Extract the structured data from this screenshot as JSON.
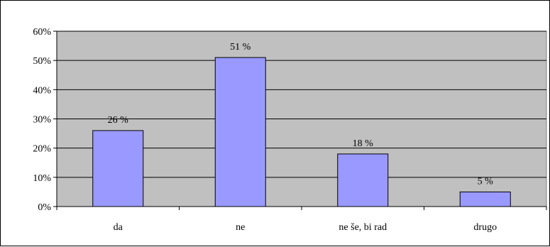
{
  "chart_data": {
    "type": "bar",
    "categories": [
      "da",
      "ne",
      "ne še, bi rad",
      "drugo"
    ],
    "values": [
      26,
      51,
      18,
      5
    ],
    "data_labels": [
      "26 %",
      "51 %",
      "18 %",
      "5 %"
    ],
    "ylim": [
      0,
      60
    ],
    "yticks": [
      0,
      10,
      20,
      30,
      40,
      50,
      60
    ],
    "ytick_labels": [
      "0%",
      "10%",
      "20%",
      "30%",
      "40%",
      "50%",
      "60%"
    ],
    "grid": true,
    "legend": "none",
    "colors": {
      "bar_fill": "#9999FF",
      "bar_stroke": "#000000",
      "plot_background": "#C0C0C0",
      "gridline": "#000000"
    }
  }
}
